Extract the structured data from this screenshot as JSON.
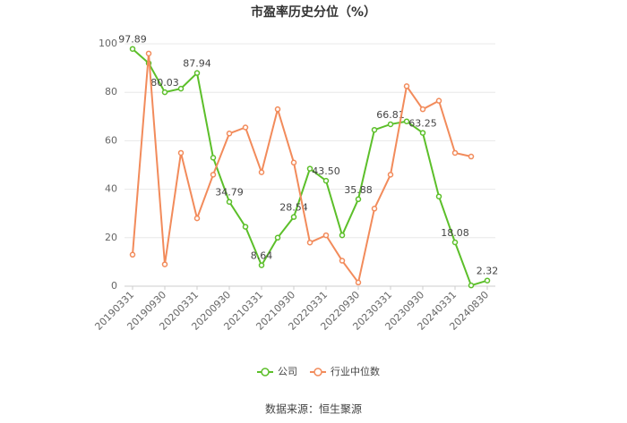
{
  "chart_data": {
    "type": "line",
    "title": "市盈率历史分位（%）",
    "categories": [
      "20190331",
      null,
      "20190930",
      null,
      "20200331",
      null,
      "20200930",
      null,
      "20210331",
      null,
      "20210930",
      null,
      "20220331",
      null,
      "20220930",
      null,
      "20230331",
      null,
      "20230930",
      null,
      "20240331",
      null,
      "20240830"
    ],
    "series": [
      {
        "name": "公司",
        "color": "#5cbf2a",
        "values": [
          97.89,
          92,
          80.03,
          81.5,
          87.94,
          53,
          34.79,
          24.5,
          8.64,
          20,
          28.54,
          48.5,
          43.5,
          21,
          35.88,
          64.5,
          66.81,
          68,
          63.25,
          37,
          18.08,
          0.3,
          2.32
        ],
        "value_labels": [
          "97.89",
          null,
          "80.03",
          null,
          "87.94",
          null,
          "34.79",
          null,
          "8.64",
          null,
          "28.54",
          null,
          "43.50",
          null,
          "35.88",
          null,
          "66.81",
          null,
          "63.25",
          null,
          "18.08",
          null,
          "2.32"
        ]
      },
      {
        "name": "行业中位数",
        "color": "#f28b5b",
        "values": [
          13,
          96,
          9,
          55,
          28,
          46,
          63,
          65.5,
          47,
          73,
          51,
          18,
          21,
          10.5,
          1.5,
          32,
          46,
          82.5,
          73,
          76.5,
          55,
          53.5,
          null
        ]
      }
    ],
    "ylim": [
      0,
      100
    ],
    "yticks": [
      0,
      20,
      40,
      60,
      80,
      100
    ],
    "grid": true,
    "legend": "bottom",
    "source": "数据来源：恒生聚源"
  }
}
